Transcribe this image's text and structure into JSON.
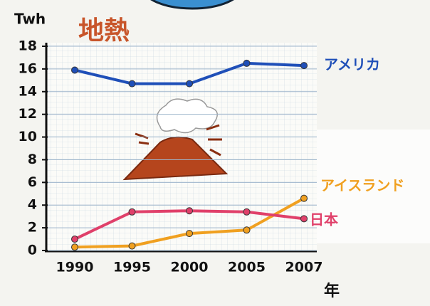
{
  "chart_data": {
    "type": "line",
    "title": "地熱",
    "y_label": "Twh",
    "x_label": "年",
    "categories": [
      "1990",
      "1995",
      "2000",
      "2005",
      "2007"
    ],
    "series": [
      {
        "name": "アメリカ",
        "color": "#1f4fb8",
        "values": [
          15.9,
          14.7,
          14.7,
          16.5,
          16.3
        ]
      },
      {
        "name": "アイスランド",
        "color": "#f0a020",
        "values": [
          0.3,
          0.4,
          1.5,
          1.8,
          4.6
        ]
      },
      {
        "name": "日本",
        "color": "#e0406a",
        "values": [
          1.0,
          3.4,
          3.5,
          3.4,
          2.8
        ]
      }
    ],
    "ylim": [
      0,
      18
    ],
    "yticks": [
      0,
      2,
      4,
      6,
      8,
      10,
      12,
      14,
      16,
      18
    ],
    "grid": true
  }
}
